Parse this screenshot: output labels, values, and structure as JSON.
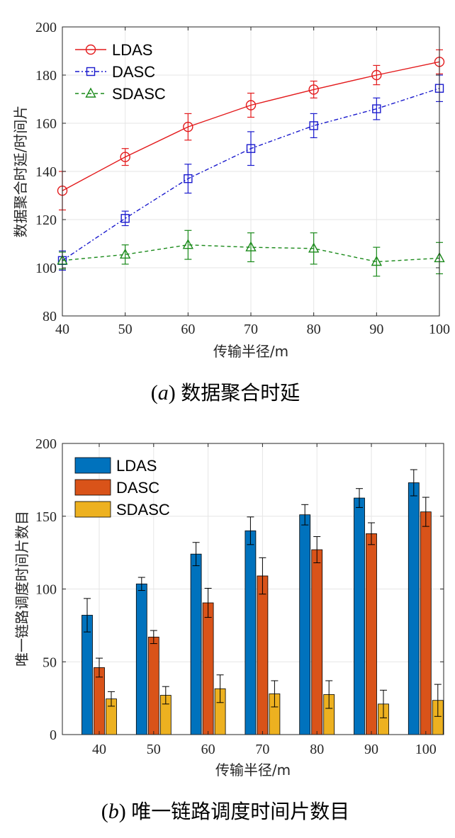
{
  "chart_data": [
    {
      "type": "line",
      "caption_letter": "a",
      "caption_text": "数据聚合时延",
      "xlabel": "传输半径/m",
      "ylabel": "数据聚合时延/时间片",
      "x": [
        40,
        50,
        60,
        70,
        80,
        90,
        100
      ],
      "xlim": [
        40,
        100
      ],
      "ylim": [
        80,
        200
      ],
      "xticks": [
        40,
        50,
        60,
        70,
        80,
        90,
        100
      ],
      "yticks": [
        80,
        100,
        120,
        140,
        160,
        180,
        200
      ],
      "grid": true,
      "legend_position": "top-left",
      "series": [
        {
          "name": "LDAS",
          "color": "#e31a1c",
          "marker": "circle",
          "dash": "solid",
          "values": [
            132,
            146,
            158.5,
            167.5,
            174,
            180,
            185.5
          ],
          "errors": [
            8,
            3.5,
            5.5,
            5,
            3.5,
            4,
            5
          ]
        },
        {
          "name": "DASC",
          "color": "#1a1acd",
          "marker": "square",
          "dash": "dashdot",
          "values": [
            103,
            120.5,
            137,
            149.5,
            159,
            166,
            174.5
          ],
          "errors": [
            4,
            3,
            6,
            7,
            5,
            4.5,
            5.5
          ]
        },
        {
          "name": "SDASC",
          "color": "#1a8a1a",
          "marker": "triangle",
          "dash": "dashed",
          "values": [
            103,
            105.5,
            109.5,
            108.5,
            108,
            102.5,
            104
          ],
          "errors": [
            3.5,
            4,
            6,
            6,
            6.5,
            6,
            6.5
          ]
        }
      ]
    },
    {
      "type": "bar",
      "caption_letter": "b",
      "caption_text": "唯一链路调度时间片数目",
      "xlabel": "传输半径/m",
      "ylabel": "唯一链路调度时间片数目",
      "categories": [
        "40",
        "50",
        "60",
        "70",
        "80",
        "90",
        "100"
      ],
      "ylim": [
        0,
        200
      ],
      "yticks": [
        0,
        50,
        100,
        150,
        200
      ],
      "grid": true,
      "legend_position": "top-left",
      "series": [
        {
          "name": "LDAS",
          "color": "#0072bd",
          "values": [
            82,
            103.5,
            124,
            140,
            151,
            162.5,
            173
          ],
          "errors": [
            11.5,
            4.5,
            8,
            9.5,
            7,
            6.5,
            9
          ]
        },
        {
          "name": "DASC",
          "color": "#d95319",
          "values": [
            46,
            67,
            90.5,
            109,
            127,
            138,
            153
          ],
          "errors": [
            6.5,
            4.5,
            10,
            12.5,
            9,
            7.5,
            10
          ]
        },
        {
          "name": "SDASC",
          "color": "#edb120",
          "values": [
            24.5,
            27,
            31.5,
            28,
            27.5,
            21,
            23.5
          ],
          "errors": [
            5,
            6,
            9.5,
            9,
            9.5,
            9.5,
            11
          ]
        }
      ]
    }
  ]
}
